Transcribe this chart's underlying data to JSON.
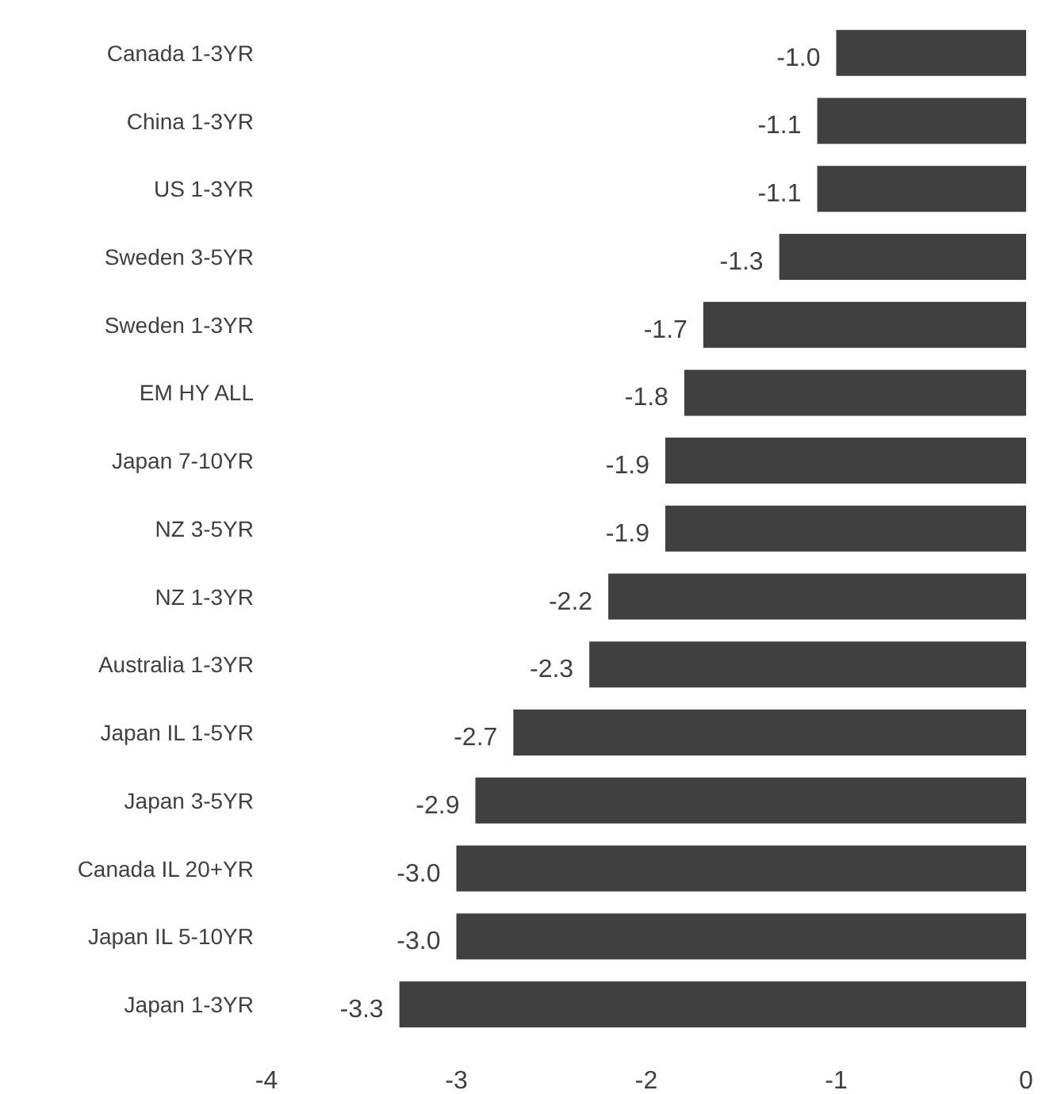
{
  "chart_data": {
    "type": "bar",
    "orientation": "horizontal",
    "categories": [
      "Canada 1-3YR",
      "China 1-3YR",
      "US 1-3YR",
      "Sweden 3-5YR",
      "Sweden 1-3YR",
      "EM HY ALL",
      "Japan 7-10YR",
      "NZ 3-5YR",
      "NZ 1-3YR",
      "Australia 1-3YR",
      "Japan IL 1-5YR",
      "Japan 3-5YR",
      "Canada IL 20+YR",
      "Japan IL 5-10YR",
      "Japan 1-3YR"
    ],
    "values": [
      -1.0,
      -1.1,
      -1.1,
      -1.3,
      -1.7,
      -1.8,
      -1.9,
      -1.9,
      -2.2,
      -2.3,
      -2.7,
      -2.9,
      -3.0,
      -3.0,
      -3.3
    ],
    "value_labels": [
      "-1.0",
      "-1.1",
      "-1.1",
      "-1.3",
      "-1.7",
      "-1.8",
      "-1.9",
      "-1.9",
      "-2.2",
      "-2.3",
      "-2.7",
      "-2.9",
      "-3.0",
      "-3.0",
      "-3.3"
    ],
    "color": "#404040",
    "xlim": [
      -4,
      0
    ],
    "xticks": [
      -4,
      -3,
      -2,
      -1,
      0
    ],
    "grid": false,
    "legend": false
  }
}
